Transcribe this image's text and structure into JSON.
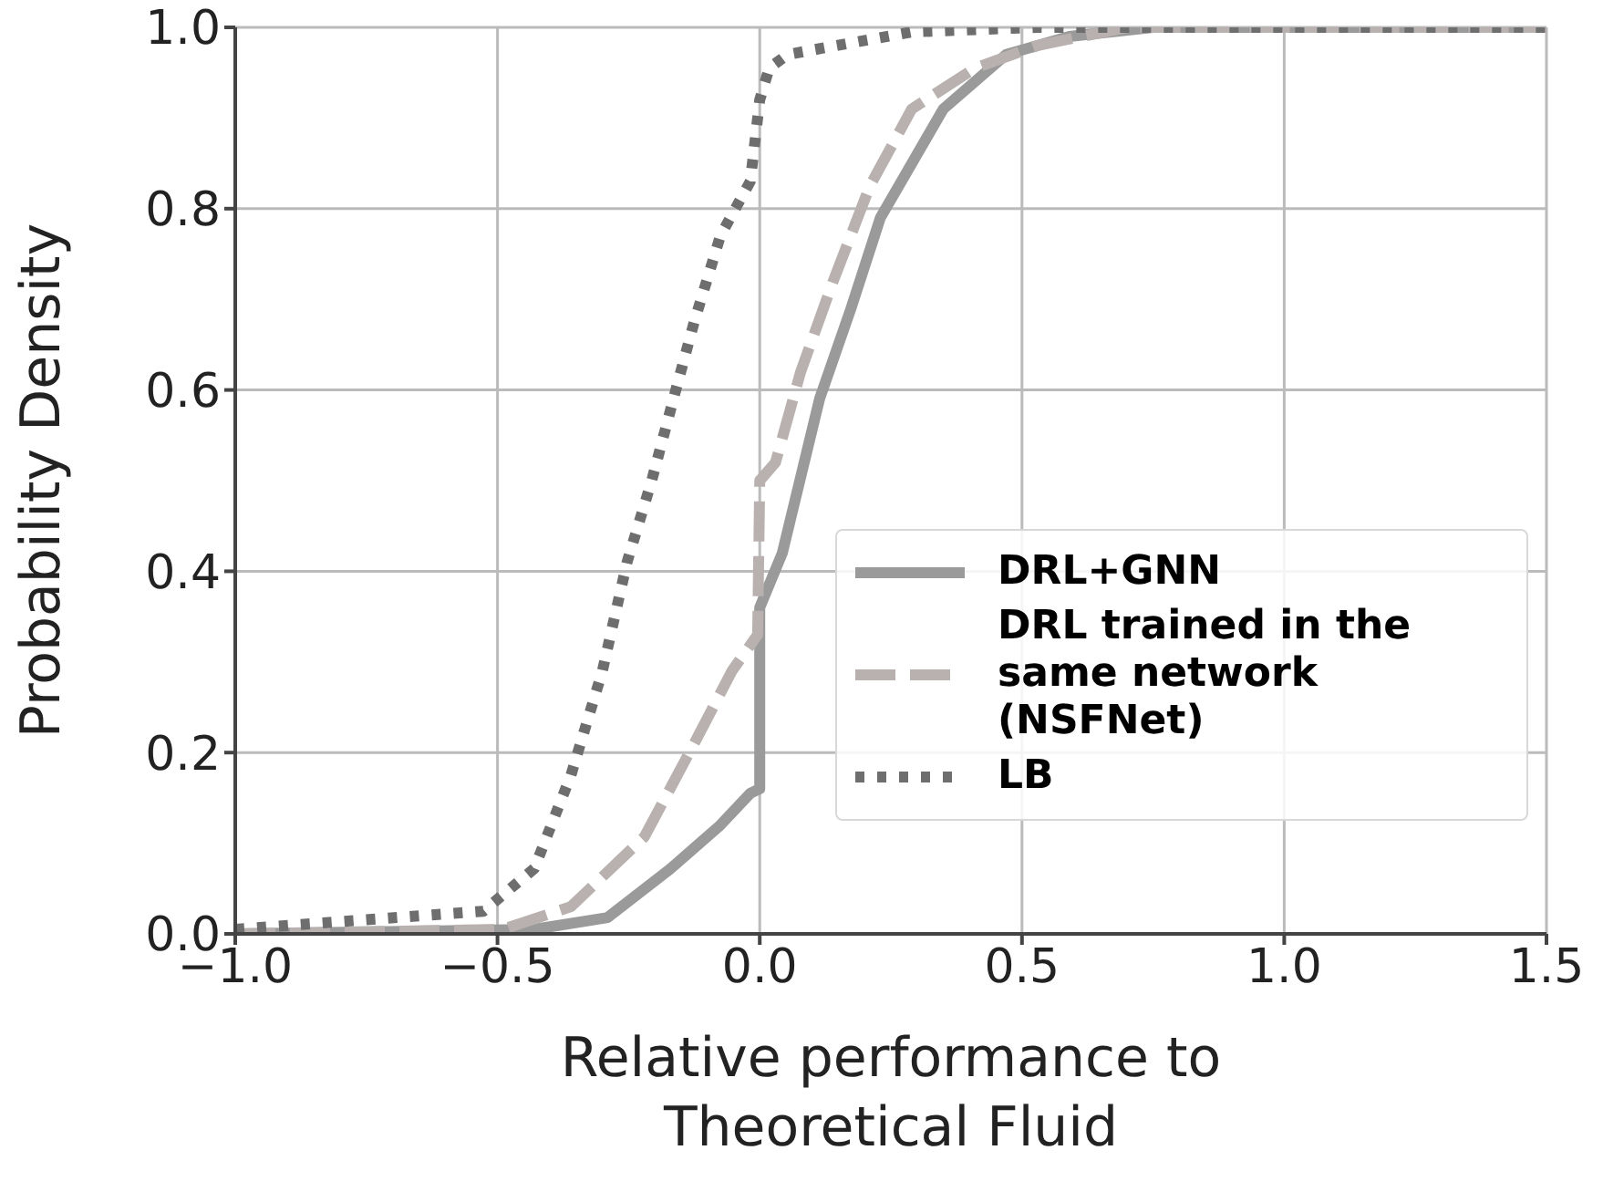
{
  "chart_data": {
    "type": "line",
    "xlabel": "Relative performance to Theoretical Fluid",
    "ylabel": "Probability Density",
    "xlim": [
      -1.0,
      1.5
    ],
    "xticks": [
      {
        "value": -1.0,
        "label": "−1.0"
      },
      {
        "value": -0.5,
        "label": "−0.5"
      },
      {
        "value": 0,
        "label": "0.0"
      },
      {
        "value": 0.5,
        "label": "0.5"
      },
      {
        "value": 1.0,
        "label": "1.0"
      },
      {
        "value": 1.5,
        "label": "1.5"
      }
    ],
    "ylim": [
      0,
      1.0
    ],
    "yticks": [
      {
        "value": 0,
        "label": "0.0"
      },
      {
        "value": 0.2,
        "label": "0.2"
      },
      {
        "value": 0.4,
        "label": "0.4"
      },
      {
        "value": 0.6,
        "label": "0.6"
      },
      {
        "value": 0.8,
        "label": "0.8"
      },
      {
        "value": 1.0,
        "label": "1.0"
      }
    ],
    "grid": true,
    "legend": "bottom right",
    "marker": "none",
    "series": [
      {
        "name": "DRL+GNN",
        "color": "#9a9a9a",
        "line_style": "solid",
        "x": [
          -1.0,
          -0.43,
          -0.29,
          -0.17,
          -0.075,
          -0.018,
          0,
          0,
          0.043,
          0.114,
          0.174,
          0.23,
          0.35,
          0.47,
          0.59,
          0.75,
          1.5
        ],
        "values": [
          0.0,
          0.005,
          0.018,
          0.072,
          0.12,
          0.155,
          0.16,
          0.36,
          0.42,
          0.59,
          0.69,
          0.79,
          0.91,
          0.97,
          0.99,
          1.0,
          1.0
        ]
      },
      {
        "name": "DRL trained in the same network (NSFNet)",
        "color": "#b9b1af",
        "line_style": "dashed",
        "x": [
          -1.0,
          -0.49,
          -0.36,
          -0.22,
          -0.125,
          -0.053,
          -0.004,
          0,
          0.03,
          0.078,
          0.14,
          0.21,
          0.29,
          0.41,
          0.53,
          0.7,
          1.5
        ],
        "values": [
          0.0,
          0.005,
          0.03,
          0.107,
          0.21,
          0.29,
          0.33,
          0.5,
          0.52,
          0.62,
          0.72,
          0.825,
          0.91,
          0.955,
          0.98,
          1.0,
          1.0
        ]
      },
      {
        "name": "LB",
        "color": "#6e6e6e",
        "line_style": "dotted",
        "x": [
          -1.0,
          -0.527,
          -0.43,
          -0.36,
          -0.3,
          -0.253,
          -0.206,
          -0.16,
          -0.125,
          -0.075,
          -0.018,
          0,
          0.018,
          0.053,
          0.29,
          0.53,
          1.5
        ],
        "values": [
          0.005,
          0.025,
          0.072,
          0.175,
          0.29,
          0.41,
          0.5,
          0.6,
          0.675,
          0.77,
          0.83,
          0.92,
          0.955,
          0.97,
          0.995,
          1.0,
          1.0
        ]
      }
    ]
  }
}
